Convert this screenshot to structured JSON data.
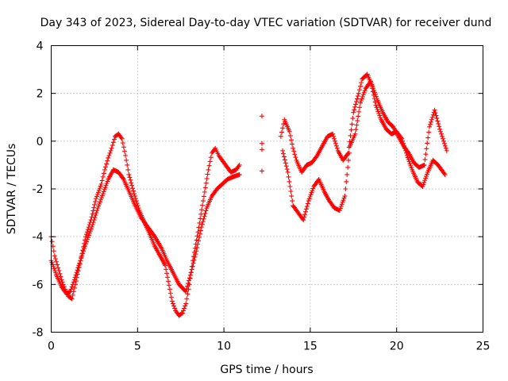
{
  "chart_data": {
    "type": "scatter",
    "title": "Day 343 of 2023, Sidereal Day-to-day VTEC variation (SDTVAR) for receiver dund",
    "xlabel": "GPS time / hours",
    "ylabel": "SDTVAR / TECUs",
    "xlim": [
      0,
      25
    ],
    "ylim": [
      -8,
      4
    ],
    "xticks": [
      0,
      5,
      10,
      15,
      20,
      25
    ],
    "yticks": [
      -8,
      -6,
      -4,
      -2,
      0,
      2,
      4
    ],
    "xtick_labels": [
      "0",
      "5",
      "10",
      "15",
      "20",
      "25"
    ],
    "ytick_labels": [
      "-8",
      "-6",
      "-4",
      "-2",
      "0",
      "2",
      "4"
    ],
    "grid": true,
    "marker": "+",
    "color": "#ff0000",
    "series": [
      {
        "name": "trace-a",
        "x": [
          0.0,
          0.2,
          0.4,
          0.6,
          0.8,
          1.0,
          1.2,
          1.4,
          1.7,
          2.0,
          2.3,
          2.6,
          2.9,
          3.1,
          3.3,
          3.5,
          3.7,
          3.9,
          4.1,
          4.3,
          4.5,
          4.8,
          5.1,
          5.4,
          5.7,
          6.0,
          6.3,
          6.6,
          7.0,
          7.2,
          7.4,
          7.6,
          7.8,
          8.0,
          8.2,
          8.5,
          8.8,
          9.1,
          9.3,
          9.5,
          9.7,
          9.9,
          10.1,
          10.4,
          10.7,
          10.9
        ],
        "y": [
          -4.0,
          -4.8,
          -5.3,
          -5.8,
          -6.2,
          -6.5,
          -6.6,
          -6.0,
          -5.0,
          -4.0,
          -3.3,
          -2.4,
          -1.8,
          -1.2,
          -0.7,
          -0.3,
          0.2,
          0.3,
          0.1,
          -0.6,
          -1.4,
          -2.2,
          -2.9,
          -3.4,
          -3.9,
          -4.4,
          -4.8,
          -5.2,
          -6.7,
          -7.1,
          -7.3,
          -7.2,
          -6.8,
          -6.0,
          -5.0,
          -3.8,
          -2.5,
          -1.2,
          -0.5,
          -0.3,
          -0.6,
          -0.8,
          -1.0,
          -1.3,
          -1.2,
          -1.0
        ]
      },
      {
        "name": "trace-b",
        "x": [
          0.0,
          0.3,
          0.6,
          0.9,
          1.1,
          1.3,
          1.6,
          2.0,
          2.4,
          2.7,
          3.0,
          3.3,
          3.6,
          3.9,
          4.2,
          4.5,
          4.8,
          5.2,
          5.6,
          6.0,
          6.4,
          6.7,
          7.4,
          7.8,
          8.1,
          8.4,
          8.7,
          9.0,
          9.3,
          9.6,
          9.9,
          10.2,
          10.5,
          10.9
        ],
        "y": [
          -5.0,
          -5.6,
          -6.1,
          -6.4,
          -6.3,
          -5.9,
          -5.2,
          -4.3,
          -3.5,
          -2.8,
          -2.2,
          -1.6,
          -1.2,
          -1.3,
          -1.6,
          -2.1,
          -2.6,
          -3.2,
          -3.6,
          -4.0,
          -4.5,
          -5.0,
          -6.0,
          -6.3,
          -5.5,
          -4.6,
          -3.6,
          -2.8,
          -2.3,
          -2.0,
          -1.8,
          -1.6,
          -1.5,
          -1.4
        ]
      },
      {
        "name": "isolated",
        "x": [
          12.2,
          12.2,
          12.2,
          12.2
        ],
        "y": [
          1.05,
          -0.1,
          -0.35,
          -1.25
        ]
      },
      {
        "name": "trace-c",
        "x": [
          13.3,
          13.5,
          13.8,
          14.0,
          14.2,
          14.5,
          14.8,
          15.1,
          15.4,
          15.7,
          16.0,
          16.3,
          16.6,
          16.9,
          17.2,
          17.5,
          17.8,
          18.0,
          18.3,
          18.6,
          18.9,
          19.2,
          19.5,
          19.8,
          20.1,
          20.4,
          20.7,
          21.0,
          21.3,
          21.6,
          21.9,
          22.2,
          22.5,
          22.9
        ],
        "y": [
          0.2,
          0.9,
          0.4,
          -0.3,
          -0.8,
          -1.3,
          -1.0,
          -0.9,
          -0.6,
          -0.2,
          0.2,
          0.3,
          -0.4,
          -0.8,
          -0.5,
          1.2,
          2.0,
          2.6,
          2.8,
          2.3,
          1.7,
          1.2,
          0.8,
          0.6,
          0.2,
          -0.2,
          -0.5,
          -0.9,
          -1.1,
          -1.0,
          0.6,
          1.3,
          0.5,
          -0.4
        ]
      },
      {
        "name": "trace-d",
        "x": [
          13.4,
          13.7,
          14.0,
          14.3,
          14.6,
          14.9,
          15.2,
          15.5,
          15.8,
          16.1,
          16.4,
          16.7,
          17.0,
          17.3,
          17.6,
          17.9,
          18.2,
          18.5,
          18.8,
          19.1,
          19.4,
          19.7,
          20.0,
          20.3,
          20.6,
          20.9,
          21.2,
          21.5,
          21.8,
          22.1,
          22.4,
          22.8
        ],
        "y": [
          -0.4,
          -1.3,
          -2.7,
          -3.0,
          -3.3,
          -2.5,
          -1.9,
          -1.6,
          -2.1,
          -2.5,
          -2.8,
          -2.9,
          -2.3,
          -0.2,
          0.3,
          1.6,
          2.2,
          2.5,
          1.5,
          0.9,
          0.5,
          0.3,
          0.4,
          0.1,
          -0.6,
          -1.2,
          -1.7,
          -1.9,
          -1.3,
          -0.8,
          -1.0,
          -1.4
        ]
      }
    ]
  }
}
